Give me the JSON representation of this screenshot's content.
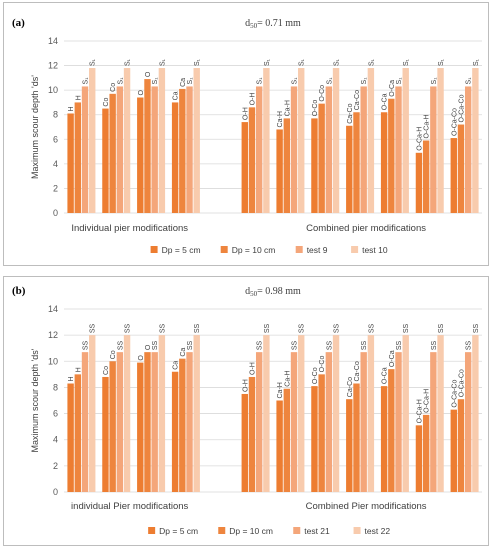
{
  "chart_data": [
    {
      "type": "bar",
      "panel_label": "(a)",
      "title": "d50= 0.71 mm",
      "ylabel": "Maximum scour depth 'ds'",
      "ylim": [
        0,
        14
      ],
      "yticks": [
        0,
        2,
        4,
        6,
        8,
        10,
        12,
        14
      ],
      "grid": true,
      "legend_position": "bottom",
      "series": [
        {
          "name": "Dp = 5 cm",
          "color": "#ed7d31"
        },
        {
          "name": "Dp = 10 cm",
          "color": "#ee853e"
        },
        {
          "name": "test 9",
          "color": "#f4a67a"
        },
        {
          "name": "test 10",
          "color": "#f8cbad"
        }
      ],
      "group_labels": [
        {
          "text": "Individual pier modifications",
          "from": 0,
          "to": 3
        },
        {
          "text": "Combined pier modifications",
          "from": 4,
          "to": 9
        }
      ],
      "groups": [
        {
          "values": [
            8.1,
            9.0,
            10.3,
            11.8
          ],
          "labels": [
            "H",
            "H",
            "S₁",
            "S₁"
          ]
        },
        {
          "values": [
            8.5,
            9.7,
            10.3,
            11.8
          ],
          "labels": [
            "Co",
            "Co",
            "S₁",
            "S₁"
          ]
        },
        {
          "values": [
            9.4,
            10.9,
            10.3,
            11.8
          ],
          "labels": [
            "O",
            "O",
            "S₁",
            "S₁"
          ]
        },
        {
          "values": [
            9.0,
            10.1,
            10.3,
            11.8
          ],
          "labels": [
            "Ca",
            "Ca",
            "S₁",
            "S₁"
          ]
        },
        {
          "gap": true
        },
        {
          "values": [
            7.4,
            8.6,
            10.3,
            11.8
          ],
          "labels": [
            "O-H",
            "O-H",
            "S₁",
            "S₁"
          ]
        },
        {
          "values": [
            6.8,
            7.7,
            10.3,
            11.8
          ],
          "labels": [
            "Ca-H",
            "Ca-H",
            "S₁",
            "S₁"
          ]
        },
        {
          "values": [
            7.7,
            8.9,
            10.3,
            11.8
          ],
          "labels": [
            "O-Co",
            "O-Co",
            "S₁",
            "S₁"
          ]
        },
        {
          "values": [
            7.1,
            8.2,
            10.3,
            11.8
          ],
          "labels": [
            "Ca-Co",
            "Ca-Co",
            "S₁",
            "S₁"
          ]
        },
        {
          "values": [
            8.2,
            9.3,
            10.3,
            11.8
          ],
          "labels": [
            "O-Ca",
            "O-Ca",
            "S₁",
            "S₁"
          ]
        },
        {
          "values": [
            4.9,
            5.9,
            10.3,
            11.8
          ],
          "labels": [
            "O-Ca-H",
            "O-Ca-H",
            "S₁",
            "S₁"
          ]
        },
        {
          "values": [
            6.1,
            7.2,
            10.3,
            11.8
          ],
          "labels": [
            "O-Ca-Co",
            "O-Ca-Co",
            "S₁",
            "S₁"
          ]
        }
      ]
    },
    {
      "type": "bar",
      "panel_label": "(b)",
      "title": "d50= 0.98 mm",
      "ylabel": "Maximum scour depth 'ds'",
      "ylim": [
        0,
        14
      ],
      "yticks": [
        0,
        2,
        4,
        6,
        8,
        10,
        12,
        14
      ],
      "grid": true,
      "legend_position": "bottom",
      "series": [
        {
          "name": "Dp = 5 cm",
          "color": "#ed7d31"
        },
        {
          "name": "Dp = 10 cm",
          "color": "#ee853e"
        },
        {
          "name": "test 21",
          "color": "#f4a67a"
        },
        {
          "name": "test 22",
          "color": "#f8cbad"
        }
      ],
      "group_labels": [
        {
          "text": "individual Pier modifications",
          "from": 0,
          "to": 3
        },
        {
          "text": "Combined Pier modifications",
          "from": 4,
          "to": 9
        }
      ],
      "groups": [
        {
          "values": [
            8.3,
            9.0,
            10.7,
            12.0
          ],
          "labels": [
            "H",
            "H",
            "SS",
            "SS"
          ]
        },
        {
          "values": [
            8.8,
            10.0,
            10.7,
            12.0
          ],
          "labels": [
            "Co",
            "Co",
            "SS",
            "SS"
          ]
        },
        {
          "values": [
            9.9,
            10.7,
            10.7,
            12.0
          ],
          "labels": [
            "O",
            "O",
            "SS",
            "SS"
          ]
        },
        {
          "values": [
            9.2,
            10.2,
            10.7,
            12.0
          ],
          "labels": [
            "Ca",
            "Ca",
            "SS",
            "SS"
          ]
        },
        {
          "gap": true
        },
        {
          "values": [
            7.5,
            8.8,
            10.7,
            12.0
          ],
          "labels": [
            "O-H",
            "O-H",
            "SS",
            "SS"
          ]
        },
        {
          "values": [
            7.0,
            7.9,
            10.7,
            12.0
          ],
          "labels": [
            "Ca-H",
            "Ca-H",
            "SS",
            "SS"
          ]
        },
        {
          "values": [
            8.1,
            9.0,
            10.7,
            12.0
          ],
          "labels": [
            "O-Co",
            "O-Co",
            "SS",
            "SS"
          ]
        },
        {
          "values": [
            7.1,
            8.3,
            10.7,
            12.0
          ],
          "labels": [
            "Ca-Co",
            "Ca-Co",
            "SS",
            "SS"
          ]
        },
        {
          "values": [
            8.1,
            9.4,
            10.7,
            12.0
          ],
          "labels": [
            "O-Ca",
            "O-Ca",
            "SS",
            "SS"
          ]
        },
        {
          "values": [
            5.1,
            5.9,
            10.7,
            12.0
          ],
          "labels": [
            "O-Ca-H",
            "O-Ca-H",
            "SS",
            "SS"
          ]
        },
        {
          "values": [
            6.3,
            7.1,
            10.7,
            12.0
          ],
          "labels": [
            "O-Ca-Co",
            "O-Ca-Co",
            "SS",
            "SS"
          ]
        }
      ]
    }
  ]
}
